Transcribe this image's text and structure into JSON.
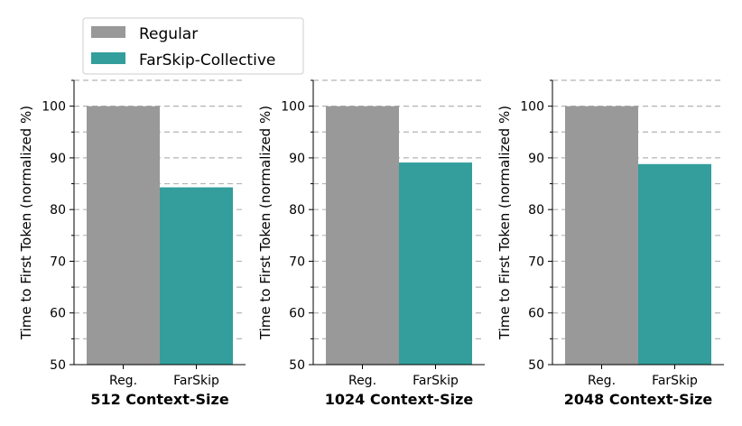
{
  "legend": {
    "entries": [
      {
        "label": "Regular",
        "color": "#999999"
      },
      {
        "label": "FarSkip-Collective",
        "color": "#339e9c"
      }
    ],
    "placement": "top-left"
  },
  "chart_data": [
    {
      "type": "bar",
      "categories": [
        "Reg.",
        "FarSkip"
      ],
      "values": [
        100,
        84.3
      ],
      "colors": [
        "#999999",
        "#339e9c"
      ],
      "xlabel": "512 Context-Size",
      "ylabel": "Time to First Token (normalized %)",
      "ylim": [
        50,
        105
      ],
      "yticks": [
        50,
        60,
        70,
        80,
        90,
        100
      ],
      "grid_lines": [
        55,
        60,
        65,
        70,
        75,
        80,
        85,
        90,
        95,
        100,
        105
      ],
      "grid": true
    },
    {
      "type": "bar",
      "categories": [
        "Reg.",
        "FarSkip"
      ],
      "values": [
        100,
        89.1
      ],
      "colors": [
        "#999999",
        "#339e9c"
      ],
      "xlabel": "1024 Context-Size",
      "ylabel": "Time to First Token (normalized %)",
      "ylim": [
        50,
        105
      ],
      "yticks": [
        50,
        60,
        70,
        80,
        90,
        100
      ],
      "grid_lines": [
        55,
        60,
        65,
        70,
        75,
        80,
        85,
        90,
        95,
        100,
        105
      ],
      "grid": true
    },
    {
      "type": "bar",
      "categories": [
        "Reg.",
        "FarSkip"
      ],
      "values": [
        100,
        88.8
      ],
      "colors": [
        "#999999",
        "#339e9c"
      ],
      "xlabel": "2048 Context-Size",
      "ylabel": "Time to First Token (normalized %)",
      "ylim": [
        50,
        105
      ],
      "yticks": [
        50,
        60,
        70,
        80,
        90,
        100
      ],
      "grid_lines": [
        55,
        60,
        65,
        70,
        75,
        80,
        85,
        90,
        95,
        100,
        105
      ],
      "grid": true
    }
  ]
}
